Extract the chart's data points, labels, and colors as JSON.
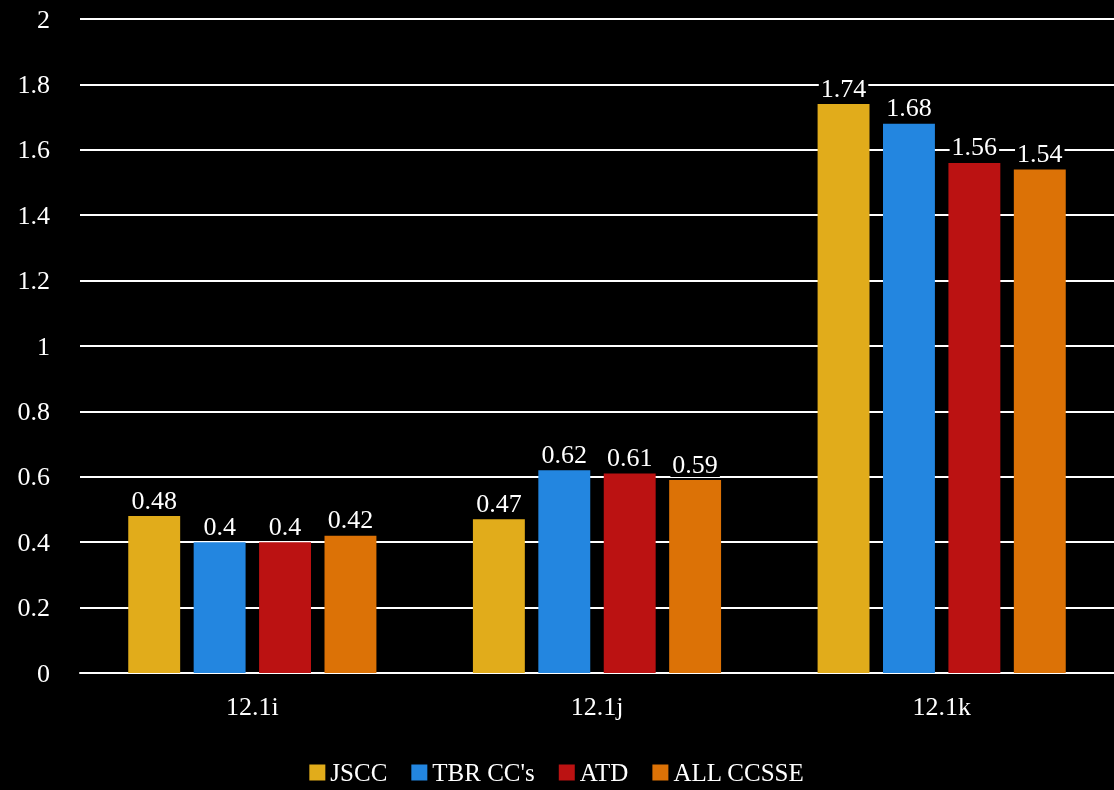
{
  "chart_data": {
    "type": "bar",
    "categories": [
      "12.1i",
      "12.1j",
      "12.1k"
    ],
    "series": [
      {
        "name": "JSCC",
        "color": "#e1ac1b",
        "values": [
          0.48,
          0.47,
          1.74
        ]
      },
      {
        "name": "TBR CC's",
        "color": "#2386e0",
        "values": [
          0.4,
          0.62,
          1.68
        ]
      },
      {
        "name": "ATD",
        "color": "#bb1212",
        "values": [
          0.4,
          0.61,
          1.56
        ]
      },
      {
        "name": "ALL CCSSE",
        "color": "#dc7206",
        "values": [
          0.42,
          0.59,
          1.54
        ]
      }
    ],
    "ylim": [
      0,
      2
    ],
    "yticks": [
      0,
      0.2,
      0.4,
      0.6,
      0.8,
      1,
      1.2,
      1.4,
      1.6,
      1.8,
      2
    ],
    "grid": "y",
    "legend": "bottom",
    "data_labels": true
  }
}
